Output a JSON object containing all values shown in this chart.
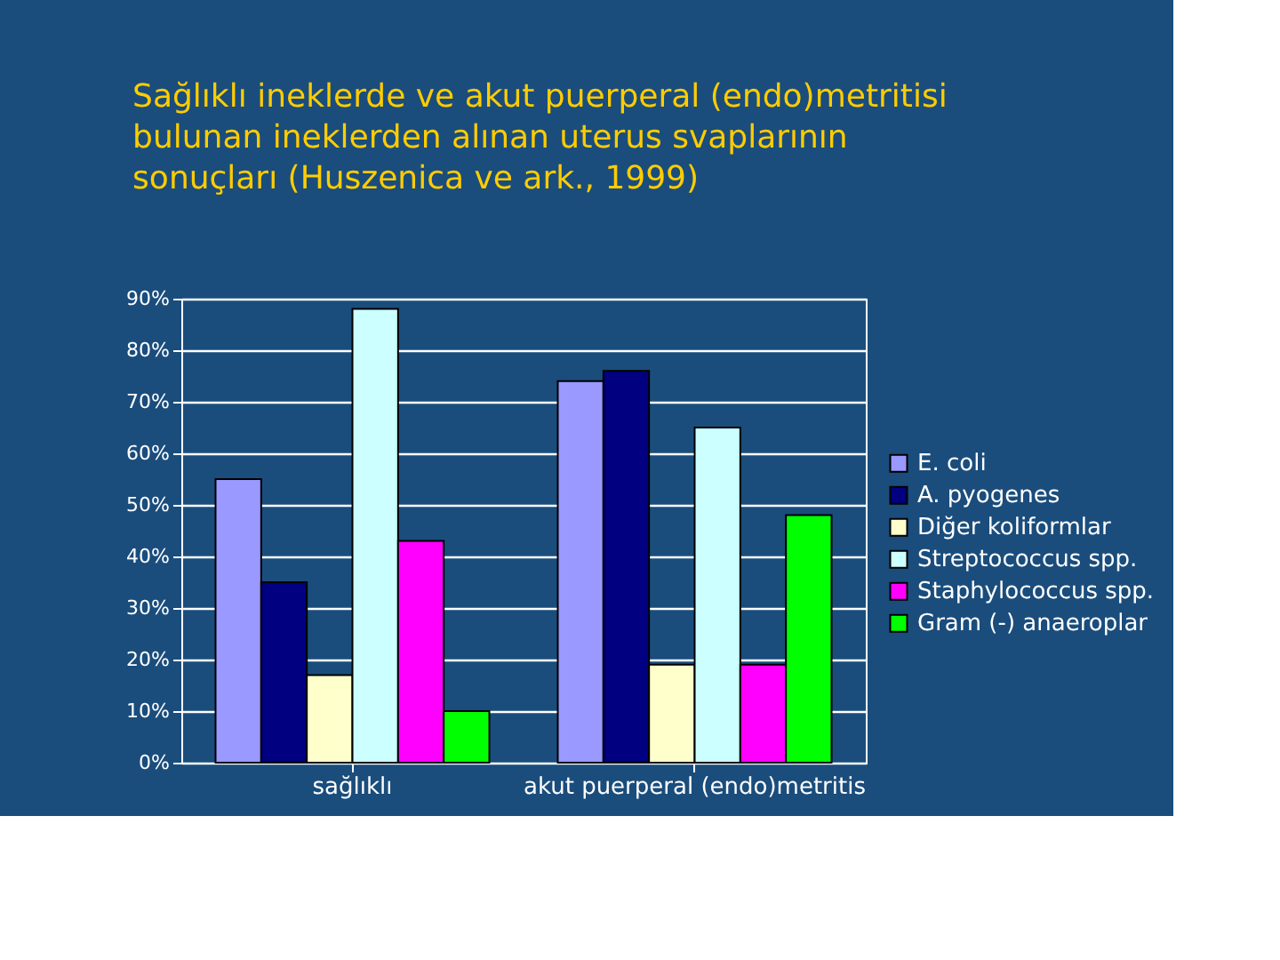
{
  "chart_data": {
    "type": "bar",
    "title": "Sağlıklı ineklerde ve akut puerperal (endo)metritisi bulunan ineklerden alınan uterus svaplarının sonuçları (Huszenica ve ark., 1999)",
    "categories": [
      "sağlıklı",
      "akut puerperal (endo)metritis"
    ],
    "series": [
      {
        "name": "E. coli",
        "color": "#9999ff",
        "values": [
          55,
          74
        ]
      },
      {
        "name": "A. pyogenes",
        "color": "#000080",
        "values": [
          35,
          76
        ]
      },
      {
        "name": "Diğer koliformlar",
        "color": "#ffffcc",
        "values": [
          17,
          19
        ]
      },
      {
        "name": "Streptococcus spp.",
        "color": "#ccffff",
        "values": [
          88,
          65
        ]
      },
      {
        "name": "Staphylococcus spp.",
        "color": "#ff00ff",
        "values": [
          43,
          19
        ]
      },
      {
        "name": "Gram (-) anaeroplar",
        "color": "#00ff00",
        "values": [
          10,
          48
        ]
      }
    ],
    "ylim": [
      0,
      90
    ],
    "yticks": [
      {
        "value": 0,
        "label": "0%"
      },
      {
        "value": 10,
        "label": "10%"
      },
      {
        "value": 20,
        "label": "20%"
      },
      {
        "value": 30,
        "label": "30%"
      },
      {
        "value": 40,
        "label": "40%"
      },
      {
        "value": 50,
        "label": "50%"
      },
      {
        "value": 60,
        "label": "60%"
      },
      {
        "value": 70,
        "label": "70%"
      },
      {
        "value": 80,
        "label": "80%"
      },
      {
        "value": 90,
        "label": "90%"
      }
    ],
    "grid": "y",
    "legend": "right"
  }
}
